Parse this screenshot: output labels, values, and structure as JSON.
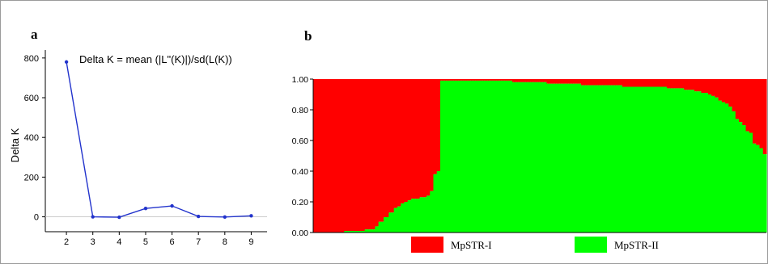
{
  "panel_a": {
    "letter": "a",
    "chart_data": {
      "type": "line",
      "annotation": "Delta K = mean (|L\"(K)|)/sd(L(K))",
      "xlabel": "",
      "ylabel": "Delta K",
      "x": [
        2,
        3,
        4,
        5,
        6,
        7,
        8,
        9
      ],
      "y": [
        780,
        0,
        -2,
        42,
        55,
        2,
        -1,
        5
      ],
      "xlim": [
        1.2,
        9.6
      ],
      "ylim": [
        -75,
        840
      ],
      "x_ticks": [
        "2",
        "3",
        "4",
        "5",
        "6",
        "7",
        "8",
        "9"
      ],
      "y_ticks": [
        "0",
        "200",
        "400",
        "600",
        "800"
      ],
      "color": "#2233cc",
      "zero_line_color": "#cccccc",
      "grid": false
    }
  },
  "panel_b": {
    "letter": "b",
    "chart_data": {
      "type": "bar",
      "stacked": true,
      "ylim": [
        0,
        1
      ],
      "y_ticks": [
        "0.00",
        "0.20",
        "0.40",
        "0.60",
        "0.80",
        "1.00"
      ],
      "legend_position": "bottom",
      "series": [
        {
          "name": "MpSTR-I",
          "color": "#ff0000"
        },
        {
          "name": "MpSTR-II",
          "color": "#00ff00"
        }
      ],
      "green_values": [
        0,
        0,
        0,
        0,
        0,
        0,
        0,
        0,
        0,
        0,
        0,
        0,
        0,
        0,
        0,
        0,
        0,
        0,
        0.01,
        0.01,
        0.01,
        0.01,
        0.01,
        0.01,
        0.01,
        0.01,
        0.01,
        0.01,
        0.01,
        0.01,
        0.02,
        0.02,
        0.02,
        0.02,
        0.02,
        0.02,
        0.04,
        0.04,
        0.07,
        0.07,
        0.07,
        0.1,
        0.1,
        0.1,
        0.13,
        0.13,
        0.13,
        0.16,
        0.16,
        0.17,
        0.17,
        0.19,
        0.19,
        0.2,
        0.2,
        0.21,
        0.21,
        0.22,
        0.22,
        0.22,
        0.22,
        0.22,
        0.23,
        0.23,
        0.23,
        0.23,
        0.24,
        0.24,
        0.27,
        0.27,
        0.38,
        0.38,
        0.4,
        0.4,
        0.99,
        0.99,
        0.99,
        0.99,
        0.99,
        0.99,
        0.99,
        0.99,
        0.99,
        0.99,
        0.99,
        0.99,
        0.99,
        0.99,
        0.99,
        0.99,
        0.99,
        0.99,
        0.99,
        0.99,
        0.99,
        0.99,
        0.99,
        0.99,
        0.99,
        0.99,
        0.99,
        0.99,
        0.99,
        0.99,
        0.99,
        0.99,
        0.99,
        0.99,
        0.99,
        0.99,
        0.99,
        0.99,
        0.99,
        0.99,
        0.99,
        0.99,
        0.98,
        0.98,
        0.98,
        0.98,
        0.98,
        0.98,
        0.98,
        0.98,
        0.98,
        0.98,
        0.98,
        0.98,
        0.98,
        0.98,
        0.98,
        0.98,
        0.98,
        0.98,
        0.98,
        0.98,
        0.97,
        0.97,
        0.97,
        0.97,
        0.97,
        0.97,
        0.97,
        0.97,
        0.97,
        0.97,
        0.97,
        0.97,
        0.97,
        0.97,
        0.97,
        0.97,
        0.97,
        0.97,
        0.97,
        0.97,
        0.96,
        0.96,
        0.96,
        0.96,
        0.96,
        0.96,
        0.96,
        0.96,
        0.96,
        0.96,
        0.96,
        0.96,
        0.96,
        0.96,
        0.96,
        0.96,
        0.96,
        0.96,
        0.96,
        0.96,
        0.96,
        0.96,
        0.96,
        0.96,
        0.95,
        0.95,
        0.95,
        0.95,
        0.95,
        0.95,
        0.95,
        0.95,
        0.95,
        0.95,
        0.95,
        0.95,
        0.95,
        0.95,
        0.95,
        0.95,
        0.95,
        0.95,
        0.95,
        0.95,
        0.95,
        0.95,
        0.95,
        0.95,
        0.95,
        0.95,
        0.94,
        0.94,
        0.94,
        0.94,
        0.94,
        0.94,
        0.94,
        0.94,
        0.94,
        0.94,
        0.93,
        0.93,
        0.93,
        0.93,
        0.93,
        0.93,
        0.92,
        0.92,
        0.92,
        0.92,
        0.91,
        0.91,
        0.91,
        0.91,
        0.9,
        0.9,
        0.89,
        0.89,
        0.88,
        0.88,
        0.86,
        0.86,
        0.85,
        0.85,
        0.84,
        0.84,
        0.82,
        0.82,
        0.79,
        0.79,
        0.74,
        0.74,
        0.72,
        0.72,
        0.7,
        0.7,
        0.66,
        0.66,
        0.65,
        0.65,
        0.58,
        0.58,
        0.57,
        0.57,
        0.55,
        0.55,
        0.51,
        0.51
      ]
    }
  }
}
